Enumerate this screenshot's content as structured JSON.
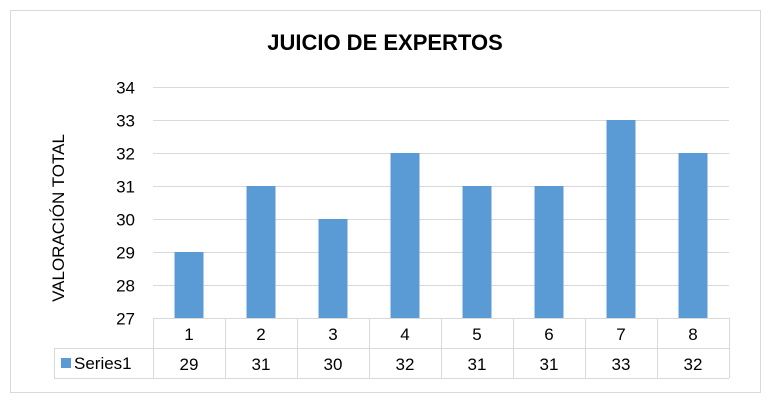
{
  "chart_data": {
    "type": "bar",
    "title": "JUICIO DE EXPERTOS",
    "xlabel": "",
    "ylabel": "VALORACIÓN TOTAL",
    "categories": [
      "1",
      "2",
      "3",
      "4",
      "5",
      "6",
      "7",
      "8"
    ],
    "series": [
      {
        "name": "Series1",
        "values": [
          29,
          31,
          30,
          32,
          31,
          31,
          33,
          32
        ],
        "color": "#5b9bd5"
      }
    ],
    "ylim": [
      27,
      34
    ],
    "yticks": [
      "27",
      "28",
      "29",
      "30",
      "31",
      "32",
      "33",
      "34"
    ],
    "grid": true,
    "legend": "data-table-left",
    "data_table": true
  }
}
